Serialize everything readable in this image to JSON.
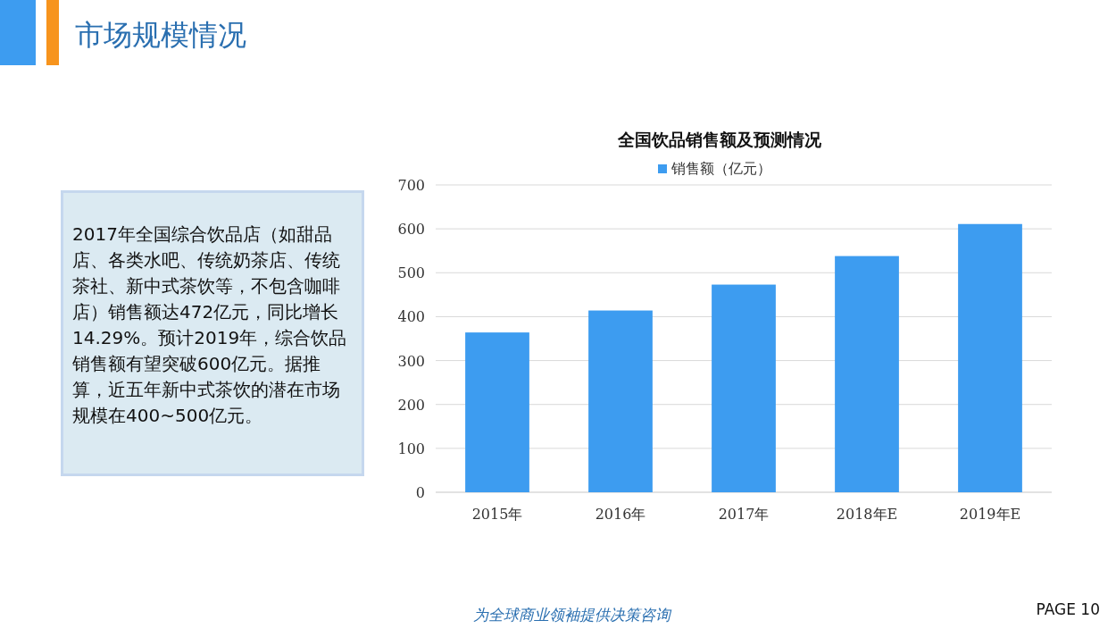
{
  "chart_data": {
    "type": "bar",
    "title": "全国饮品销售额及预测情况",
    "categories": [
      "2015年",
      "2016年",
      "2017年",
      "2018年E",
      "2019年E"
    ],
    "series": [
      {
        "name": "销售额（亿元）",
        "color": "#3d9cf0",
        "values": [
          364,
          414,
          473,
          538,
          611
        ]
      }
    ],
    "ylim": [
      0,
      700
    ],
    "yticks": [
      0,
      100,
      200,
      300,
      400,
      500,
      600,
      700
    ],
    "grid": "y",
    "legend": "top",
    "annotations": [
      "市场规模情况",
      "2017年全国综合饮品店（如甜品店、各类水吧、传统奶茶店、传统茶社、新中式茶饮等，不包含咖啡店）销售额达472亿元，同比增长14.29%。预计2019年，综合饮品销售额有望突破600亿元。据推算，近五年新中式茶饮的潜在市场规模在400~500亿元。",
      "为全球商业领袖提供决策咨询",
      "PAGE 10"
    ]
  }
}
